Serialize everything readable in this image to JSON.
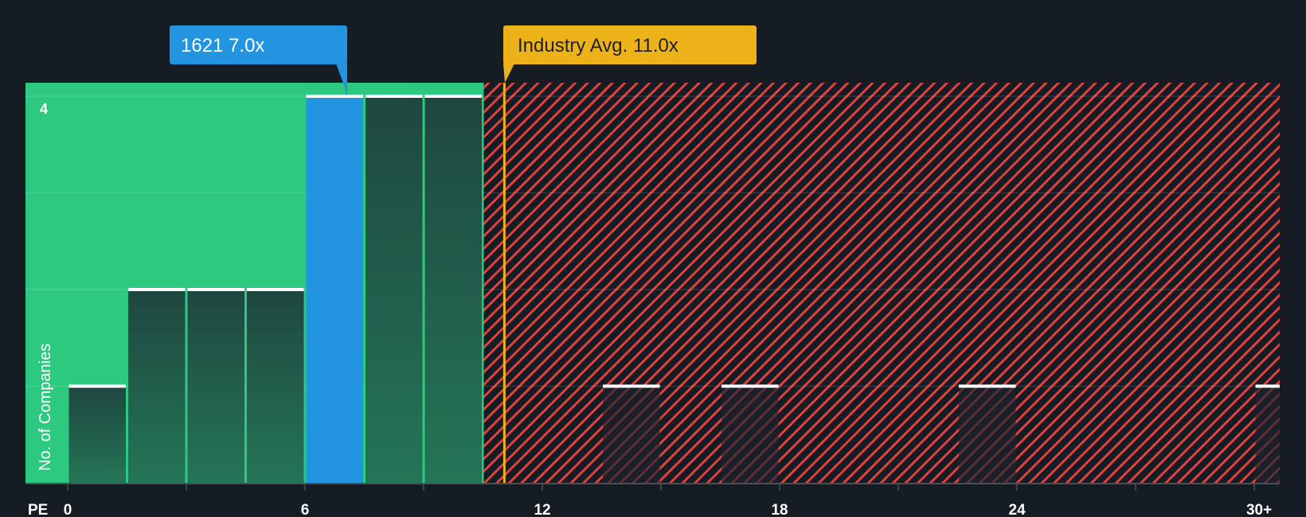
{
  "chart_data": {
    "type": "bar",
    "title": "",
    "xlabel": "PE",
    "ylabel": "No. of Companies",
    "x_ticks": [
      "0",
      "6",
      "12",
      "18",
      "24",
      "30+"
    ],
    "y_ticks": [
      "4"
    ],
    "ylim": [
      0,
      4.15
    ],
    "xlim": [
      0,
      31.5
    ],
    "bin_width": 1.5,
    "bars": [
      {
        "x_start": 0.0,
        "x_end": 1.5,
        "count": 1,
        "zone": "below"
      },
      {
        "x_start": 1.5,
        "x_end": 3.0,
        "count": 2,
        "zone": "below"
      },
      {
        "x_start": 3.0,
        "x_end": 4.5,
        "count": 2,
        "zone": "below"
      },
      {
        "x_start": 4.5,
        "x_end": 6.0,
        "count": 2,
        "zone": "below"
      },
      {
        "x_start": 6.0,
        "x_end": 7.5,
        "count": 4,
        "zone": "company"
      },
      {
        "x_start": 7.5,
        "x_end": 9.0,
        "count": 4,
        "zone": "below"
      },
      {
        "x_start": 9.0,
        "x_end": 10.5,
        "count": 4,
        "zone": "below"
      },
      {
        "x_start": 13.5,
        "x_end": 15.0,
        "count": 1,
        "zone": "above"
      },
      {
        "x_start": 16.5,
        "x_end": 18.0,
        "count": 1,
        "zone": "above"
      },
      {
        "x_start": 22.5,
        "x_end": 24.0,
        "count": 1,
        "zone": "above"
      },
      {
        "x_start": 30.0,
        "x_end": 31.5,
        "count": 1,
        "zone": "above"
      }
    ],
    "green_zone_end": 10.5,
    "company": {
      "label": "1621 7.0x",
      "value": 7.0
    },
    "industry_avg": {
      "label": "Industry Avg. 11.0x",
      "value": 11.0
    },
    "grid": true,
    "legend": "none"
  },
  "colors": {
    "background": "#161c24",
    "green_zone": "#2ec980",
    "bar_dark_top": "#1f4740",
    "bar_dark_bottom": "#247155",
    "company_bar": "#2394e0",
    "hatch_red": "#e0413f",
    "industry_line": "#edb21a",
    "bar_cap": "#ffffff",
    "axis": "#4a4f57",
    "text": "#ffffff",
    "industry_text": "#1d222a"
  },
  "labels": {
    "company_callout": "1621 7.0x",
    "industry_callout": "Industry Avg. 11.0x",
    "y_axis_title": "No. of Companies",
    "x_axis_title": "PE",
    "y_tick_4": "4"
  }
}
